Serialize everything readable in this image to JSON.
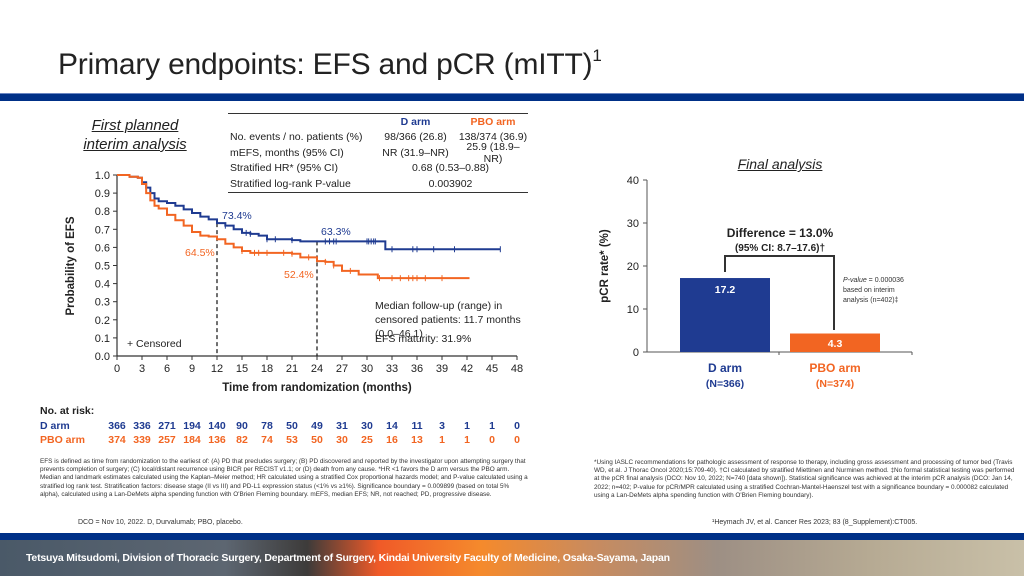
{
  "slide": {
    "title": "Primary endpoints: EFS and pCR (mITT)",
    "title_sup": "1",
    "brand_color": "#003087"
  },
  "efs_panel": {
    "subhead_line1": "First planned",
    "subhead_line2": "interim analysis",
    "table": {
      "col_d": "D arm",
      "col_pbo": "PBO arm",
      "rows": [
        {
          "label": "No. events / no. patients (%)",
          "d": "98/366 (26.8)",
          "pbo": "138/374 (36.9)"
        },
        {
          "label": "mEFS, months (95% CI)",
          "d": "NR (31.9–NR)",
          "pbo": "25.9 (18.9–NR)"
        },
        {
          "label": "Stratified HR* (95% CI)",
          "span": "0.68 (0.53–0.88)"
        },
        {
          "label": "Stratified log-rank P-value",
          "span": "0.003902"
        }
      ]
    },
    "at_risk": {
      "heading": "No. at risk:",
      "d_label": "D arm",
      "pbo_label": "PBO arm",
      "d": [
        366,
        336,
        271,
        194,
        140,
        90,
        78,
        50,
        49,
        31,
        30,
        14,
        11,
        3,
        1,
        1,
        0
      ],
      "pbo": [
        374,
        339,
        257,
        184,
        136,
        82,
        74,
        53,
        50,
        30,
        25,
        16,
        13,
        1,
        1,
        0,
        0
      ]
    },
    "footnote": "EFS is defined as time from randomization to the earliest of: (A) PD that precludes surgery; (B) PD discovered and reported by the investigator upon attempting surgery that prevents completion of surgery; (C) local/distant recurrence using BICR per RECIST v1.1; or (D) death from any cause. *HR <1 favors the D arm versus the PBO arm. Median and landmark estimates calculated using the Kaplan–Meier method; HR calculated using a stratified Cox proportional hazards model; and P-value calculated using a stratified log rank test. Stratification factors: disease stage (II vs III) and PD-L1 expression status (<1% vs ≥1%). Significance boundary = 0.009899 (based on total 5% alpha), calculated using a Lan-DeMets alpha spending function with O'Brien Fleming boundary. mEFS, median EFS; NR, not reached; PD, progressive disease.",
    "dco": "DCO = Nov 10, 2022. D, Durvalumab; PBO, placebo."
  },
  "pcr_panel": {
    "subhead": "Final analysis",
    "difference": "Difference = 13.0%",
    "ci": "(95% CI: 8.7–17.6)†",
    "pvalue_label": "P-value",
    "pvalue_text": " = 0.000036",
    "pvalue_line2": "based on interim",
    "pvalue_line3": "analysis (n=402)‡",
    "footnote": "*Using IASLC recommendations for pathologic assessment of response to therapy, including gross assessment and processing of tumor bed (Travis WD, et al. J Thorac Oncol 2020;15:709-40). †CI calculated by stratified Miettinen and Nurminen method. ‡No formal statistical testing was performed at the pCR final analysis (DCO: Nov 10, 2022; N=740 [data shown]). Statistical significance was achieved at the interim pCR analysis (DCO: Jan 14, 2022; n=402; P-value for pCR/MPR calculated using a stratified Cochran-Mantel-Haenszel test with a significance boundary = 0.000082 calculated using a Lan-DeMets alpha spending function with O'Brien Fleming boundary).",
    "reference": "¹Heymach JV, et al. Cancer Res 2023; 83 (8_Supplement):CT005."
  },
  "footer": {
    "presenter": "Tetsuya Mitsudomi, Division of Thoracic Surgery, Department of Surgery, Kindai University Faculty of Medicine, Osaka-Sayama, Japan"
  },
  "chart_data": [
    {
      "type": "line",
      "subtype": "kaplan-meier",
      "title": "First planned interim analysis",
      "xlabel": "Time from randomization (months)",
      "ylabel": "Probability of EFS",
      "xlim": [
        0,
        48
      ],
      "ylim": [
        0,
        1.0
      ],
      "xticks": [
        0,
        3,
        6,
        9,
        12,
        15,
        18,
        21,
        24,
        27,
        30,
        33,
        36,
        39,
        42,
        45,
        48
      ],
      "yticks": [
        0.0,
        0.1,
        0.2,
        0.3,
        0.4,
        0.5,
        0.6,
        0.7,
        0.8,
        0.9,
        1.0
      ],
      "legend": "+ Censored",
      "legend_position": "bottom-left",
      "series": [
        {
          "name": "D arm",
          "color": "#1f3b91",
          "points": [
            [
              0,
              1.0
            ],
            [
              1.5,
              0.99
            ],
            [
              2.5,
              0.985
            ],
            [
              3,
              0.96
            ],
            [
              3.5,
              0.93
            ],
            [
              4,
              0.9
            ],
            [
              4.5,
              0.87
            ],
            [
              5,
              0.855
            ],
            [
              6,
              0.845
            ],
            [
              7,
              0.83
            ],
            [
              8,
              0.81
            ],
            [
              9,
              0.79
            ],
            [
              10,
              0.77
            ],
            [
              11,
              0.755
            ],
            [
              12,
              0.734
            ],
            [
              13,
              0.72
            ],
            [
              14,
              0.7
            ],
            [
              15,
              0.68
            ],
            [
              16,
              0.675
            ],
            [
              17,
              0.665
            ],
            [
              18,
              0.645
            ],
            [
              20,
              0.645
            ],
            [
              21,
              0.64
            ],
            [
              22,
              0.633
            ],
            [
              24,
              0.633
            ],
            [
              32,
              0.633
            ],
            [
              32.2,
              0.59
            ],
            [
              46,
              0.59
            ]
          ],
          "censored_x": [
            13,
            15.5,
            16,
            18,
            19,
            21,
            25,
            25.5,
            26,
            26.3,
            30,
            30.2,
            30.5,
            30.8,
            31,
            33,
            35.5,
            36,
            38,
            40.5,
            46
          ]
        },
        {
          "name": "PBO arm",
          "color": "#f26522",
          "points": [
            [
              0,
              1.0
            ],
            [
              1.5,
              0.99
            ],
            [
              2.5,
              0.985
            ],
            [
              3,
              0.95
            ],
            [
              3.5,
              0.9
            ],
            [
              4,
              0.86
            ],
            [
              4.5,
              0.83
            ],
            [
              5,
              0.815
            ],
            [
              6,
              0.78
            ],
            [
              7,
              0.75
            ],
            [
              8,
              0.72
            ],
            [
              9,
              0.685
            ],
            [
              10,
              0.665
            ],
            [
              11,
              0.66
            ],
            [
              12,
              0.645
            ],
            [
              13,
              0.62
            ],
            [
              14,
              0.6
            ],
            [
              15,
              0.58
            ],
            [
              16,
              0.57
            ],
            [
              21,
              0.565
            ],
            [
              22,
              0.545
            ],
            [
              24,
              0.524
            ],
            [
              25,
              0.52
            ],
            [
              26,
              0.5
            ],
            [
              27,
              0.47
            ],
            [
              28.5,
              0.47
            ],
            [
              29,
              0.45
            ],
            [
              31,
              0.45
            ],
            [
              31.3,
              0.43
            ],
            [
              42.3,
              0.43
            ]
          ],
          "censored_x": [
            15,
            16.5,
            17,
            18,
            20,
            21,
            23,
            25,
            26,
            28,
            31.5,
            33,
            34,
            35,
            35.5,
            36,
            37,
            39
          ]
        }
      ],
      "annotations": [
        {
          "text": "73.4%",
          "x": 12,
          "y": 0.734,
          "series": "D arm"
        },
        {
          "text": "64.5%",
          "x": 12,
          "y": 0.645,
          "series": "PBO arm"
        },
        {
          "text": "63.3%",
          "x": 24,
          "y": 0.633,
          "series": "D arm"
        },
        {
          "text": "52.4%",
          "x": 24,
          "y": 0.524,
          "series": "PBO arm"
        },
        {
          "text": "Median follow-up (range) in censored patients: 11.7 months (0.0–46.1)"
        },
        {
          "text": "EFS maturity: 31.9%"
        }
      ],
      "landmarks_x": [
        12,
        24
      ]
    },
    {
      "type": "bar",
      "title": "Final analysis",
      "ylabel": "pCR rate* (%)",
      "ylim": [
        0,
        40
      ],
      "yticks": [
        0,
        10,
        20,
        30,
        40
      ],
      "categories": [
        "D arm",
        "PBO arm"
      ],
      "category_n": [
        "(N=366)",
        "(N=374)"
      ],
      "values": [
        17.2,
        4.3
      ],
      "colors": [
        "#1f3b91",
        "#f26522"
      ]
    }
  ]
}
